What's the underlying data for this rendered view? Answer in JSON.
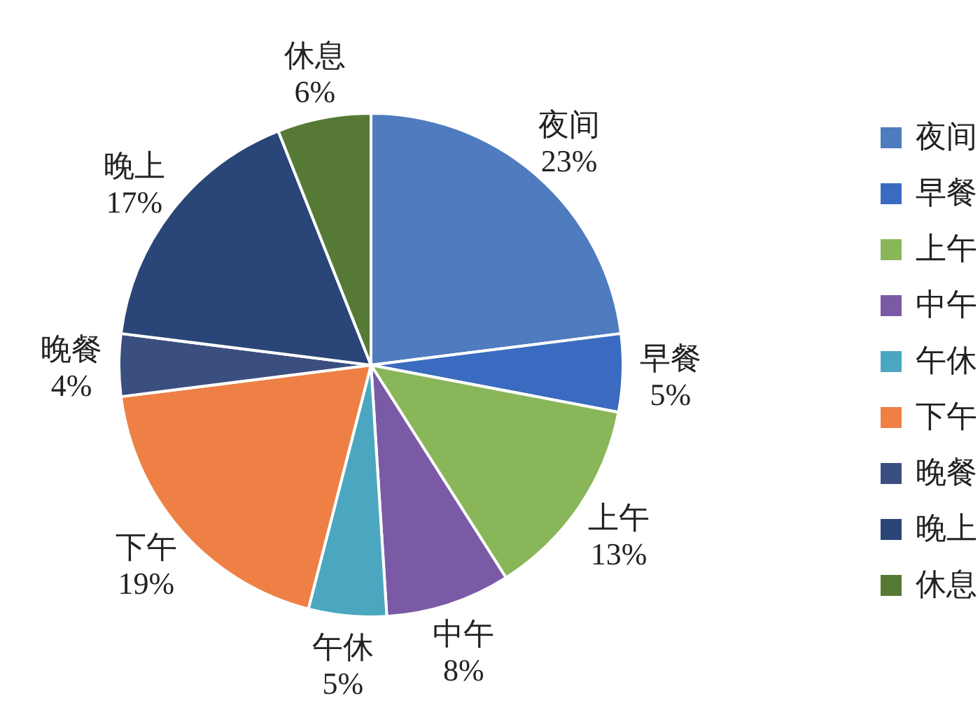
{
  "chart_data": {
    "type": "pie",
    "categories": [
      "夜间",
      "早餐",
      "上午",
      "中午",
      "午休",
      "下午",
      "晚餐",
      "晚上",
      "休息"
    ],
    "values": [
      23,
      5,
      13,
      8,
      5,
      19,
      4,
      17,
      6
    ],
    "colors": [
      "#4f7bbf",
      "#3a6bc0",
      "#8ab65a",
      "#7a5aa5",
      "#4ba7bf",
      "#ee8045",
      "#3a4f7f",
      "#2a4577",
      "#567a35"
    ],
    "value_labels": [
      "23%",
      "5%",
      "13%",
      "8%",
      "5%",
      "19%",
      "4%",
      "17%",
      "6%"
    ],
    "legend": "right"
  }
}
